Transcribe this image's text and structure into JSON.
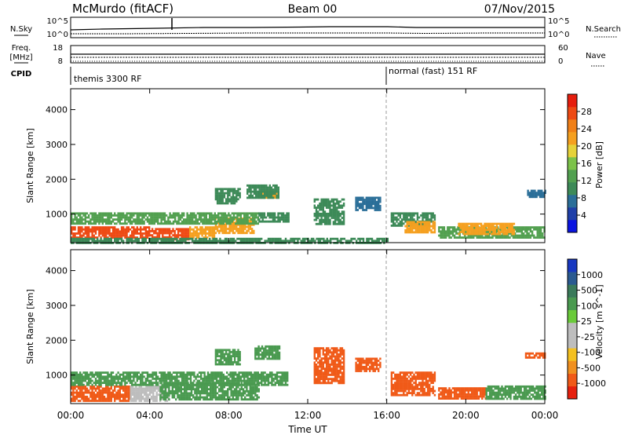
{
  "header": {
    "station": "McMurdo (fitACF)",
    "beam": "Beam 00",
    "date": "07/Nov/2015"
  },
  "status_panel": {
    "nsky_label": "N.Sky",
    "nsearch_label": "N.Search",
    "nsky_ticks": [
      "10^5",
      "10^0"
    ],
    "nsearch_ticks": [
      "10^5",
      "10^0"
    ],
    "freq_label_1": "Freq.",
    "freq_label_2": "[MHz]",
    "freq_ticks": [
      "18",
      "8"
    ],
    "nave_label": "Nave",
    "nave_ticks": [
      "60",
      "0"
    ],
    "cpid_label": "CPID",
    "cpid_segments": [
      {
        "start_hour": 0,
        "end_hour": 16,
        "label": "themis 3300 RF"
      },
      {
        "start_hour": 16,
        "end_hour": 24,
        "label": "normal (fast) 151 RF"
      }
    ]
  },
  "colors": {
    "power_scale": [
      "#0a14e0",
      "#1f3fa8",
      "#2a6e98",
      "#3d8a58",
      "#52a050",
      "#7cc24a",
      "#e6d23a",
      "#f5a020",
      "#f08018",
      "#ee4a14",
      "#e61e0e"
    ],
    "velocity_scale": [
      "#1838c0",
      "#2a5a90",
      "#3a7a5a",
      "#4a9a50",
      "#6aca3a",
      "#bdbdbd",
      "#bdbdbd",
      "#f4c020",
      "#f09020",
      "#f05a18",
      "#e6200e"
    ],
    "cpid_divider": "#888888"
  },
  "chart_data": [
    {
      "type": "heatmap",
      "quantity": "power",
      "xlabel": "",
      "ylabel": "Slant Range [km]",
      "xlim": [
        0,
        24
      ],
      "ylim": [
        180,
        4600
      ],
      "yticks": [
        "1000",
        "2000",
        "3000",
        "4000"
      ],
      "colorbar_label": "Power [dB]",
      "colorbar_ticks": [
        "4",
        "8",
        "12",
        "16",
        "20",
        "24",
        "28"
      ],
      "colorbar_range": [
        0,
        32
      ],
      "features": [
        {
          "x": [
            0.0,
            4.0
          ],
          "y": [
            300,
            650
          ],
          "value": 29
        },
        {
          "x": [
            4.0,
            6.0
          ],
          "y": [
            300,
            600
          ],
          "value": 27
        },
        {
          "x": [
            6.0,
            7.3
          ],
          "y": [
            350,
            650
          ],
          "value": 22
        },
        {
          "x": [
            7.3,
            9.3
          ],
          "y": [
            450,
            900
          ],
          "value": 23
        },
        {
          "x": [
            0.0,
            9.5
          ],
          "y": [
            700,
            1050
          ],
          "value": 13
        },
        {
          "x": [
            9.5,
            11.0
          ],
          "y": [
            800,
            1050
          ],
          "value": 10
        },
        {
          "x": [
            0.0,
            16.0
          ],
          "y": [
            200,
            320
          ],
          "value": 9
        },
        {
          "x": [
            9.5,
            10.4
          ],
          "y": [
            1480,
            1680
          ],
          "value": 22
        },
        {
          "x": [
            8.9,
            10.5
          ],
          "y": [
            1450,
            1850
          ],
          "value": 10
        },
        {
          "x": [
            7.3,
            8.6
          ],
          "y": [
            1300,
            1750
          ],
          "value": 11
        },
        {
          "x": [
            12.3,
            13.8
          ],
          "y": [
            700,
            1450
          ],
          "value": 9
        },
        {
          "x": [
            14.4,
            15.7
          ],
          "y": [
            1100,
            1500
          ],
          "value": 8
        },
        {
          "x": [
            16.2,
            18.4
          ],
          "y": [
            650,
            1050
          ],
          "value": 11
        },
        {
          "x": [
            16.9,
            18.4
          ],
          "y": [
            500,
            800
          ],
          "value": 21
        },
        {
          "x": [
            18.6,
            24.0
          ],
          "y": [
            300,
            650
          ],
          "value": 14
        },
        {
          "x": [
            19.6,
            22.4
          ],
          "y": [
            450,
            750
          ],
          "value": 21
        },
        {
          "x": [
            23.1,
            24.0
          ],
          "y": [
            1500,
            1700
          ],
          "value": 8
        }
      ]
    },
    {
      "type": "heatmap",
      "quantity": "velocity",
      "xlabel": "Time UT",
      "ylabel": "Slant Range [km]",
      "xlim": [
        0,
        24
      ],
      "ylim": [
        180,
        4600
      ],
      "xticks": [
        "00:00",
        "04:00",
        "08:00",
        "12:00",
        "16:00",
        "20:00",
        "00:00"
      ],
      "yticks": [
        "1000",
        "2000",
        "3000",
        "4000"
      ],
      "colorbar_label": "Velocity [m s^-1]",
      "colorbar_ticks": [
        "1000",
        "500",
        "100",
        "25",
        "-25",
        "-100",
        "-500",
        "-1000"
      ],
      "colorbar_range": [
        -1000,
        1000
      ],
      "features": [
        {
          "x": [
            0.0,
            3.0
          ],
          "y": [
            250,
            700
          ],
          "value": -300
        },
        {
          "x": [
            3.0,
            5.0
          ],
          "y": [
            250,
            700
          ],
          "value": 0
        },
        {
          "x": [
            4.5,
            9.5
          ],
          "y": [
            300,
            800
          ],
          "value": 150
        },
        {
          "x": [
            0.0,
            11.0
          ],
          "y": [
            700,
            1100
          ],
          "value": 250
        },
        {
          "x": [
            9.3,
            10.6
          ],
          "y": [
            1450,
            1850
          ],
          "value": 250
        },
        {
          "x": [
            7.3,
            8.6
          ],
          "y": [
            1300,
            1750
          ],
          "value": 200
        },
        {
          "x": [
            12.3,
            13.8
          ],
          "y": [
            800,
            1800
          ],
          "value": -350
        },
        {
          "x": [
            14.4,
            15.7
          ],
          "y": [
            1100,
            1500
          ],
          "value": -300
        },
        {
          "x": [
            16.2,
            18.4
          ],
          "y": [
            450,
            1100
          ],
          "value": -400
        },
        {
          "x": [
            18.6,
            21.0
          ],
          "y": [
            300,
            650
          ],
          "value": -350
        },
        {
          "x": [
            21.0,
            24.0
          ],
          "y": [
            300,
            700
          ],
          "value": 200
        },
        {
          "x": [
            23.0,
            24.0
          ],
          "y": [
            1500,
            1650
          ],
          "value": -400
        }
      ]
    }
  ]
}
